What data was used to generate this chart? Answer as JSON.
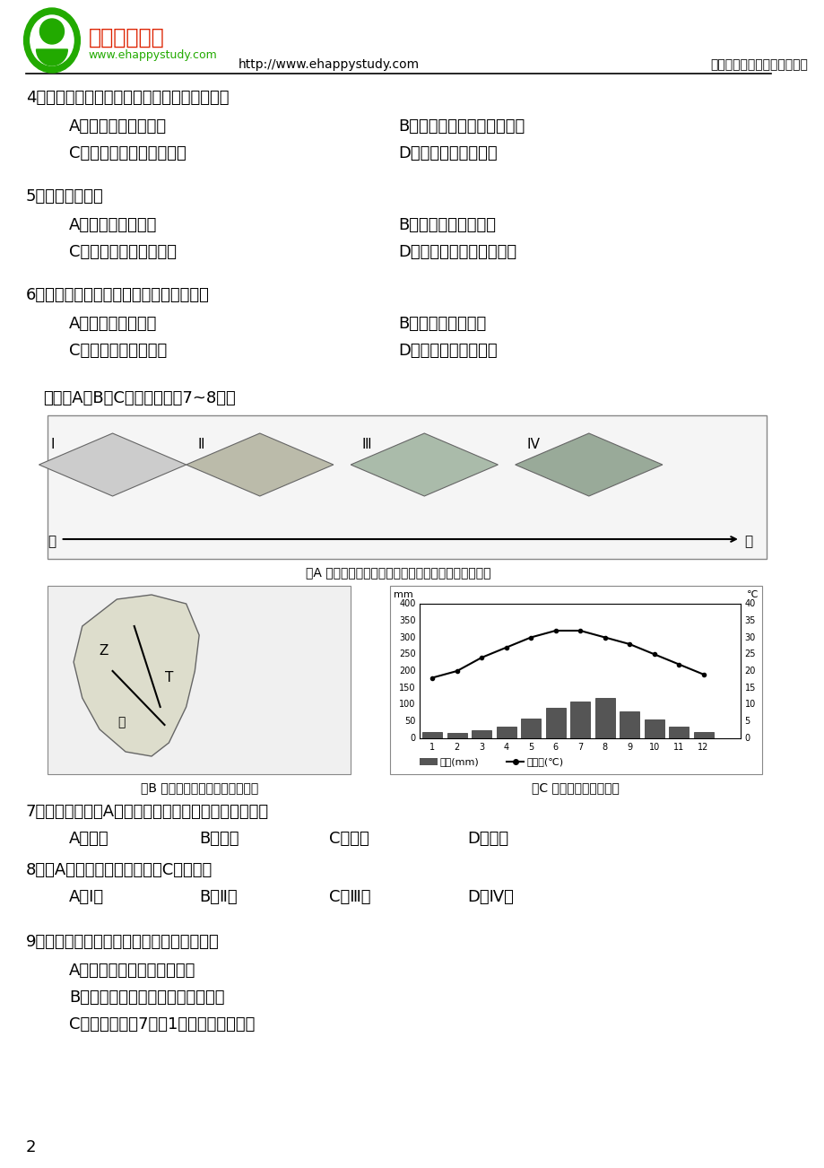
{
  "bg_color": "#ffffff",
  "header_url": "http://www.ehappystudy.com",
  "header_right": "快乐学习，尽在苏州中学网校",
  "logo_text_main": "苏州中学网校",
  "logo_text_sub": "www.ehappystudy.com",
  "questions": [
    {
      "num": "4．",
      "text": "甲图所示地区海岸线非常曲折，将会使当地",
      "options": [
        [
          "A．飓风影响范围扩大",
          "B．温带海洋性气候范围扩大"
        ],
        [
          "C．洋流对沿岸的影响减弱",
          "D．围海造田难度降低"
        ]
      ]
    },
    {
      "num": "5．",
      "text": "乙图所示地区",
      "options": [
        [
          "A．沿岸有季风洋流",
          "B．山脉南北纵向排列"
        ],
        [
          "C．有小面积的沙漠分布",
          "D．降水的季节变化不明显"
        ]
      ]
    },
    {
      "num": "6．",
      "text": "甲、乙两图所示地区河流的共同特征是",
      "options": [
        [
          "A．有多种补给水源",
          "B．有较长的结冰期"
        ],
        [
          "C．有比较大的含沙量",
          "D．有河口三角洲平原"
        ]
      ]
    }
  ],
  "section_intro": "读下面A、B、C三幅图，回答7~8题：",
  "fig_a_caption": "图A 非洲自然资源考察活动路线的自然景观变化示意图",
  "fig_b_caption": "图B 非洲自然景观考察的绕路方案",
  "fig_c_caption": "图C 非洲某地气候直方图",
  "questions2": [
    {
      "num": "7．",
      "text": "能够观察到图A所示自然景观变化现象的考察线路是",
      "options_inline": [
        "A．甲线",
        "B．乙线",
        "C．丙线",
        "D．丁线"
      ]
    },
    {
      "num": "8．",
      "text": "图A四地中，气候特征与图C相符的是",
      "options_inline": [
        "A．Ⅰ地",
        "B．Ⅱ地",
        "C．Ⅲ地",
        "D．Ⅳ地"
      ]
    }
  ],
  "question9": {
    "num": "9．",
    "text": "南极洲和北冰洋自然地理环境的相同点是",
    "options_list": [
      "A．世界上最小的大洲和大洋",
      "B．极圈内均有极昼和极夜现象出现",
      "C．分别是世界7月、1月世界最冷的地方"
    ]
  },
  "page_num": "2"
}
